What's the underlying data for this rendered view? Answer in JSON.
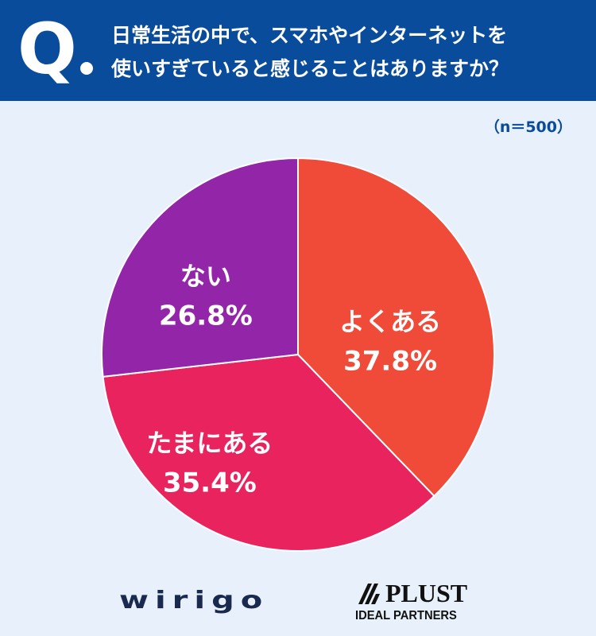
{
  "header": {
    "q_letter": "Q",
    "question_line1": "日常生活の中で、スマホやインターネットを",
    "question_line2": "使いすぎていると感じることはありますか？"
  },
  "sample_size": "（n＝500）",
  "chart_data": {
    "type": "pie",
    "title": "日常生活の中で、スマホやインターネットを使いすぎていると感じることはありますか？",
    "note": "（n＝500）",
    "start": "12 o'clock",
    "direction": "clockwise",
    "slices": [
      {
        "label": "よくある",
        "value": 37.8,
        "display": "37.8%",
        "color": "#f04a38"
      },
      {
        "label": "たまにある",
        "value": 35.4,
        "display": "35.4%",
        "color": "#e8235e"
      },
      {
        "label": "ない",
        "value": 26.8,
        "display": "26.8%",
        "color": "#9225a8"
      }
    ]
  },
  "logos": {
    "left": "wirigo",
    "right_name": "PLUST",
    "right_sub": "IDEAL PARTNERS"
  },
  "colors": {
    "header_bg": "#0a4c9c",
    "page_bg": "#e8f1fb",
    "note_text": "#0a4c9c"
  }
}
